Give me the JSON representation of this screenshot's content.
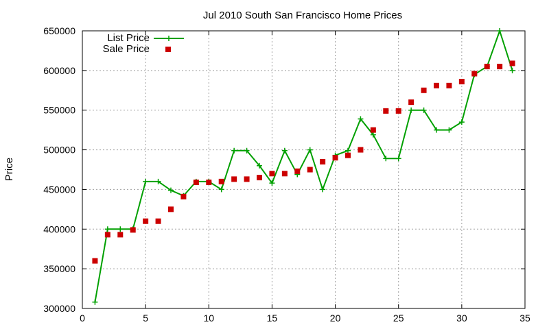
{
  "chart_data": {
    "type": "line",
    "title": "Jul 2010 South San Francisco Home Prices",
    "xlabel": "",
    "ylabel": "Price",
    "xlim": [
      0,
      35
    ],
    "ylim": [
      300000,
      650000
    ],
    "x_ticks": [
      0,
      5,
      10,
      15,
      20,
      25,
      30,
      35
    ],
    "y_ticks": [
      300000,
      350000,
      400000,
      450000,
      500000,
      550000,
      600000,
      650000
    ],
    "grid": true,
    "legend_position": "top-left",
    "colors": {
      "list": "#00a000",
      "sale": "#cc0000"
    },
    "series": [
      {
        "name": "List Price",
        "style": "line-with-plus-markers",
        "x": [
          1,
          2,
          3,
          4,
          5,
          6,
          7,
          8,
          9,
          10,
          11,
          12,
          13,
          14,
          15,
          16,
          17,
          18,
          19,
          20,
          21,
          22,
          23,
          24,
          25,
          26,
          27,
          28,
          29,
          30,
          31,
          32,
          33,
          34
        ],
        "values": [
          308000,
          400000,
          400000,
          400000,
          460000,
          460000,
          449000,
          442000,
          460000,
          460000,
          450000,
          499000,
          499000,
          480000,
          458000,
          499000,
          469000,
          500000,
          450000,
          493000,
          499000,
          539000,
          519000,
          489000,
          489000,
          550000,
          550000,
          525000,
          525000,
          535000,
          595000,
          605000,
          650000,
          600000
        ]
      },
      {
        "name": "Sale Price",
        "style": "square-markers",
        "x": [
          1,
          2,
          3,
          4,
          5,
          6,
          7,
          8,
          9,
          10,
          11,
          12,
          13,
          14,
          15,
          16,
          17,
          18,
          19,
          20,
          21,
          22,
          23,
          24,
          25,
          26,
          27,
          28,
          29,
          30,
          31,
          32,
          33,
          34
        ],
        "values": [
          360000,
          393000,
          393000,
          399000,
          410000,
          410000,
          425000,
          441000,
          459000,
          459000,
          460000,
          463000,
          463000,
          465000,
          470000,
          470000,
          473000,
          475000,
          485000,
          490000,
          493000,
          500000,
          525000,
          549000,
          549000,
          560000,
          575000,
          581000,
          581000,
          586000,
          596000,
          605000,
          605000,
          609000
        ]
      }
    ]
  }
}
